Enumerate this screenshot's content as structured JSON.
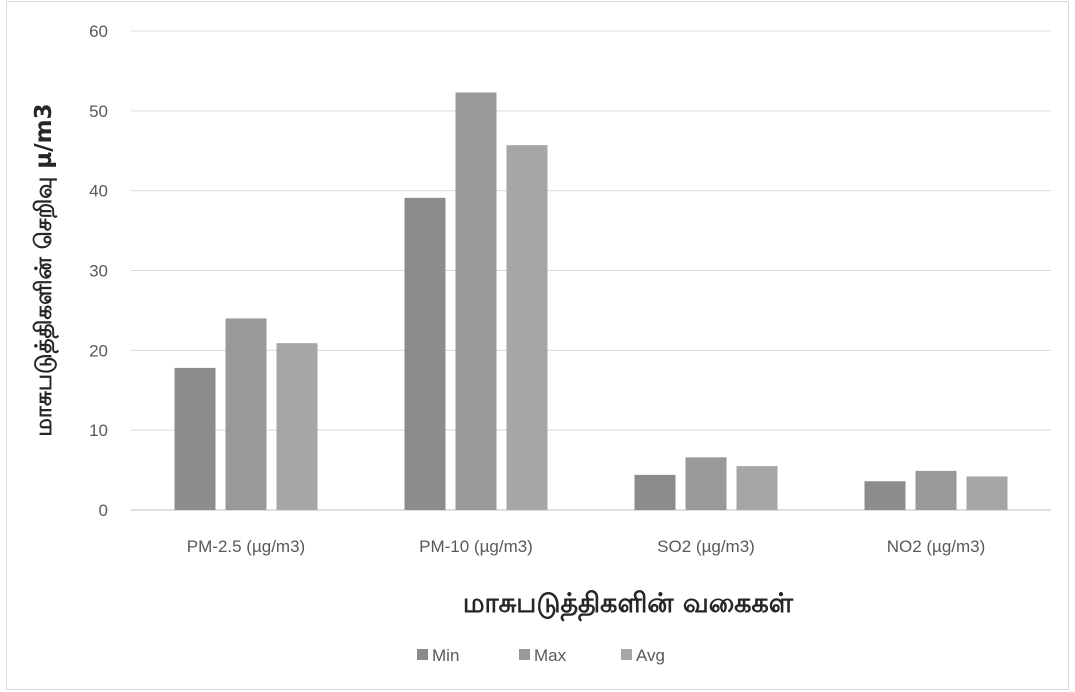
{
  "chart_data": {
    "type": "bar",
    "title": "",
    "xlabel": "மாசுபடுத்திகளின் வகைகள்",
    "ylabel": "மாசுபடுத்திகளின் செறிவு µ/m3",
    "categories": [
      "PM-2.5  (µg/m3)",
      "PM-10 (µg/m3)",
      "SO2  (µg/m3)",
      "NO2  (µg/m3)"
    ],
    "series": [
      {
        "name": "Min",
        "values": [
          17.8,
          39.1,
          4.4,
          3.6
        ],
        "color": "#8c8c8c"
      },
      {
        "name": "Max",
        "values": [
          24.0,
          52.3,
          6.6,
          4.9
        ],
        "color": "#999999"
      },
      {
        "name": "Avg",
        "values": [
          20.9,
          45.7,
          5.5,
          4.2
        ],
        "color": "#a6a6a6"
      }
    ],
    "ylim": [
      0,
      60
    ],
    "yticks": [
      0,
      10,
      20,
      30,
      40,
      50,
      60
    ],
    "grid": true,
    "legend_position": "bottom"
  }
}
